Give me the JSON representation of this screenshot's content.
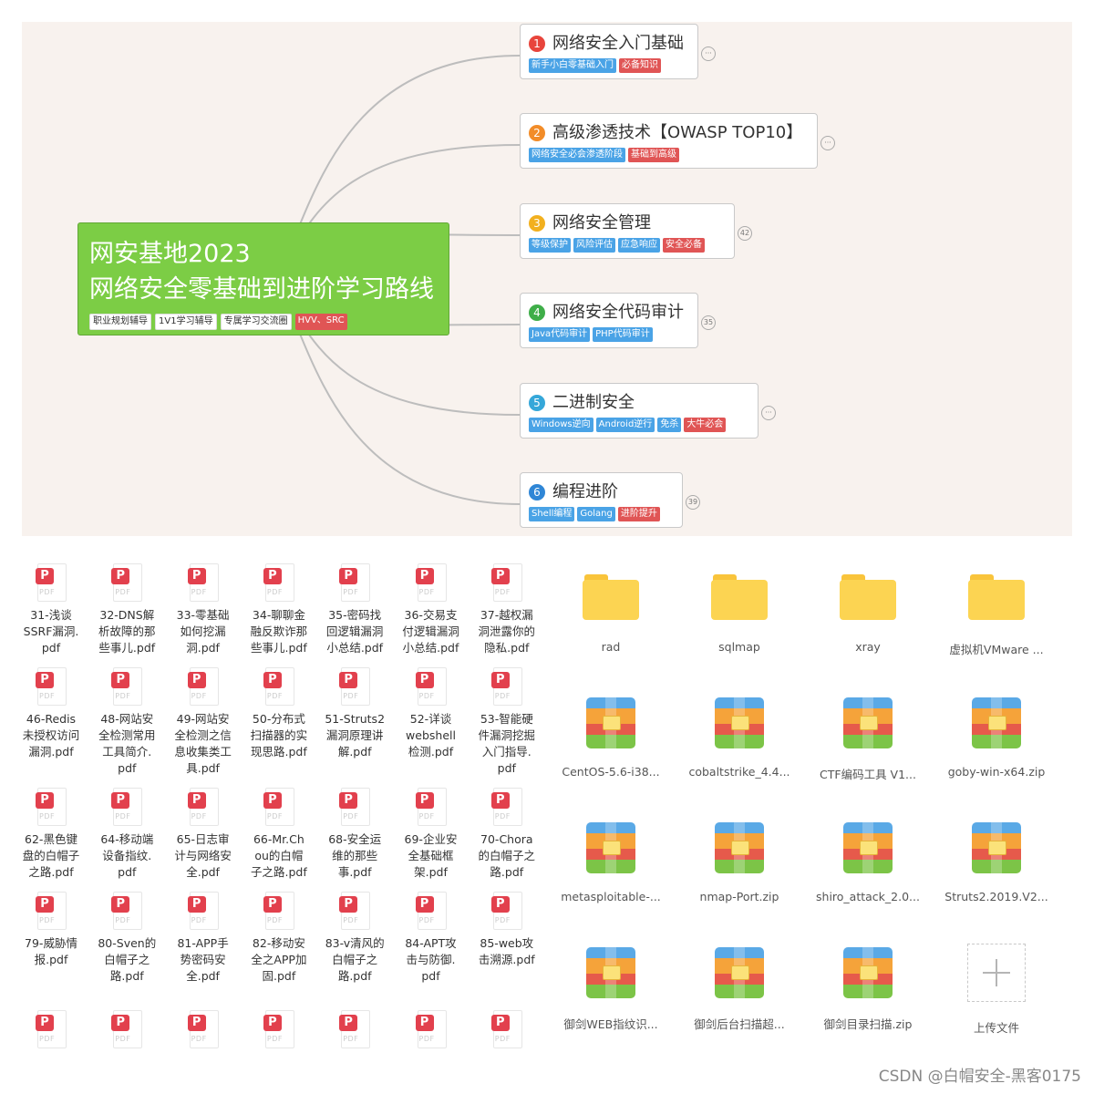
{
  "mindmap": {
    "root": {
      "title_line1": "网安基地2023",
      "title_line2": "网络安全零基础到进阶学习路线",
      "tags": [
        {
          "text": "职业规划辅导",
          "style": "white"
        },
        {
          "text": "1V1学习辅导",
          "style": "white"
        },
        {
          "text": "专属学习交流圈",
          "style": "white"
        },
        {
          "text": "HVV、SRC",
          "style": "red"
        }
      ]
    },
    "branches": [
      {
        "num": "1",
        "badge_color": "#e8453c",
        "title": "网络安全入门基础",
        "collapse": "···",
        "tags": [
          {
            "text": "新手小白零基础入门",
            "style": "blue"
          },
          {
            "text": "必备知识",
            "style": "red"
          }
        ]
      },
      {
        "num": "2",
        "badge_color": "#f28c28",
        "title": "高级渗透技术【OWASP TOP10】",
        "collapse": "···",
        "tags": [
          {
            "text": "网络安全必会渗透阶段",
            "style": "blue"
          },
          {
            "text": "基础到高级",
            "style": "red"
          }
        ]
      },
      {
        "num": "3",
        "badge_color": "#f2b01e",
        "title": "网络安全管理",
        "collapse": "42",
        "tags": [
          {
            "text": "等级保护",
            "style": "blue"
          },
          {
            "text": "风险评估",
            "style": "blue"
          },
          {
            "text": "应急响应",
            "style": "blue"
          },
          {
            "text": "安全必备",
            "style": "red"
          }
        ]
      },
      {
        "num": "4",
        "badge_color": "#3fae49",
        "title": "网络安全代码审计",
        "collapse": "35",
        "tags": [
          {
            "text": "Java代码审计",
            "style": "blue"
          },
          {
            "text": "PHP代码审计",
            "style": "blue"
          }
        ]
      },
      {
        "num": "5",
        "badge_color": "#35a7d9",
        "title": "二进制安全",
        "collapse": "···",
        "tags": [
          {
            "text": "Windows逆向",
            "style": "blue"
          },
          {
            "text": "Android逆行",
            "style": "blue"
          },
          {
            "text": "免杀",
            "style": "blue"
          },
          {
            "text": "大牛必会",
            "style": "red"
          }
        ]
      },
      {
        "num": "6",
        "badge_color": "#2f86d6",
        "title": "编程进阶",
        "collapse": "39",
        "tags": [
          {
            "text": "Shell编程",
            "style": "blue"
          },
          {
            "text": "Golang",
            "style": "blue"
          },
          {
            "text": "进阶提升",
            "style": "red"
          }
        ]
      }
    ]
  },
  "pdf_label": "PDF",
  "pdf_files": [
    "31-浅谈SSRF漏洞.pdf",
    "32-DNS解析故障的那些事儿.pdf",
    "33-零基础如何挖漏洞.pdf",
    "34-聊聊金融反欺诈那些事儿.pdf",
    "35-密码找回逻辑漏洞小总结.pdf",
    "36-交易支付逻辑漏洞小总结.pdf",
    "37-越权漏洞泄露你的隐私.pdf",
    "46-Redis未授权访问漏洞.pdf",
    "48-网站安全检测常用工具简介.pdf",
    "49-网站安全检测之信息收集类工具.pdf",
    "50-分布式扫描器的实现思路.pdf",
    "51-Struts2漏洞原理讲解.pdf",
    "52-详谈webshell检测.pdf",
    "53-智能硬件漏洞挖掘入门指导.pdf",
    "62-黑色键盘的白帽子之路.pdf",
    "64-移动端设备指纹.pdf",
    "65-日志审计与网络安全.pdf",
    "66-Mr.Chou的白帽子之路.pdf",
    "68-安全运维的那些事.pdf",
    "69-企业安全基础框架.pdf",
    "70-Chora的白帽子之路.pdf",
    "79-威胁情报.pdf",
    "80-Sven的白帽子之路.pdf",
    "81-APP手势密码安全.pdf",
    "82-移动安全之APP加固.pdf",
    "83-v清风的白帽子之路.pdf",
    "84-APT攻击与防御.pdf",
    "85-web攻击溯源.pdf",
    "",
    "",
    "",
    "",
    "",
    "",
    ""
  ],
  "pdf_display_names": [
    [
      "31-浅谈",
      "SSRF漏洞.",
      "pdf"
    ],
    [
      "32-DNS解",
      "析故障的那",
      "些事儿.pdf"
    ],
    [
      "33-零基础",
      "如何挖漏",
      "洞.pdf"
    ],
    [
      "34-聊聊金",
      "融反欺诈那",
      "些事儿.pdf"
    ],
    [
      "35-密码找",
      "回逻辑漏洞",
      "小总结.pdf"
    ],
    [
      "36-交易支",
      "付逻辑漏洞",
      "小总结.pdf"
    ],
    [
      "37-越权漏",
      "洞泄露你的",
      "隐私.pdf"
    ],
    [
      "46-Redis",
      "未授权访问",
      "漏洞.pdf"
    ],
    [
      "48-网站安",
      "全检测常用",
      "工具简介.",
      "pdf"
    ],
    [
      "49-网站安",
      "全检测之信",
      "息收集类工",
      "具.pdf"
    ],
    [
      "50-分布式",
      "扫描器的实",
      "现思路.pdf"
    ],
    [
      "51-Struts2",
      "漏洞原理讲",
      "解.pdf"
    ],
    [
      "52-详谈",
      "webshell",
      "检测.pdf"
    ],
    [
      "53-智能硬",
      "件漏洞挖掘",
      "入门指导.",
      "pdf"
    ],
    [
      "62-黑色键",
      "盘的白帽子",
      "之路.pdf"
    ],
    [
      "64-移动端",
      "设备指纹.",
      "pdf"
    ],
    [
      "65-日志审",
      "计与网络安",
      "全.pdf"
    ],
    [
      "66-Mr.Ch",
      "ou的白帽",
      "子之路.pdf"
    ],
    [
      "68-安全运",
      "维的那些",
      "事.pdf"
    ],
    [
      "69-企业安",
      "全基础框",
      "架.pdf"
    ],
    [
      "70-Chora",
      "的白帽子之",
      "路.pdf"
    ],
    [
      "79-威胁情",
      "报.pdf"
    ],
    [
      "80-Sven的",
      "白帽子之",
      "路.pdf"
    ],
    [
      "81-APP手",
      "势密码安",
      "全.pdf"
    ],
    [
      "82-移动安",
      "全之APP加",
      "固.pdf"
    ],
    [
      "83-v清风的",
      "白帽子之",
      "路.pdf"
    ],
    [
      "84-APT攻",
      "击与防御.",
      "pdf"
    ],
    [
      "85-web攻",
      "击溯源.pdf"
    ],
    [],
    [],
    [],
    [],
    [],
    [],
    []
  ],
  "apps": [
    {
      "type": "folder",
      "name": "rad"
    },
    {
      "type": "folder",
      "name": "sqlmap"
    },
    {
      "type": "folder",
      "name": "xray"
    },
    {
      "type": "folder",
      "name": "虚拟机VMware ..."
    },
    {
      "type": "zip",
      "name": "CentOS-5.6-i38..."
    },
    {
      "type": "zip",
      "name": "cobaltstrike_4.4..."
    },
    {
      "type": "zip",
      "name": "CTF编码工具 V1..."
    },
    {
      "type": "zip",
      "name": "goby-win-x64.zip"
    },
    {
      "type": "zip",
      "name": "metasploitable-..."
    },
    {
      "type": "zip",
      "name": "nmap-Port.zip"
    },
    {
      "type": "zip",
      "name": "shiro_attack_2.0..."
    },
    {
      "type": "zip",
      "name": "Struts2.2019.V2..."
    },
    {
      "type": "zip",
      "name": "御剑WEB指纹识..."
    },
    {
      "type": "zip",
      "name": "御剑后台扫描超..."
    },
    {
      "type": "zip",
      "name": "御剑目录扫描.zip"
    },
    {
      "type": "upload",
      "name": "上传文件"
    }
  ],
  "watermark": "CSDN @白帽安全-黑客0175"
}
